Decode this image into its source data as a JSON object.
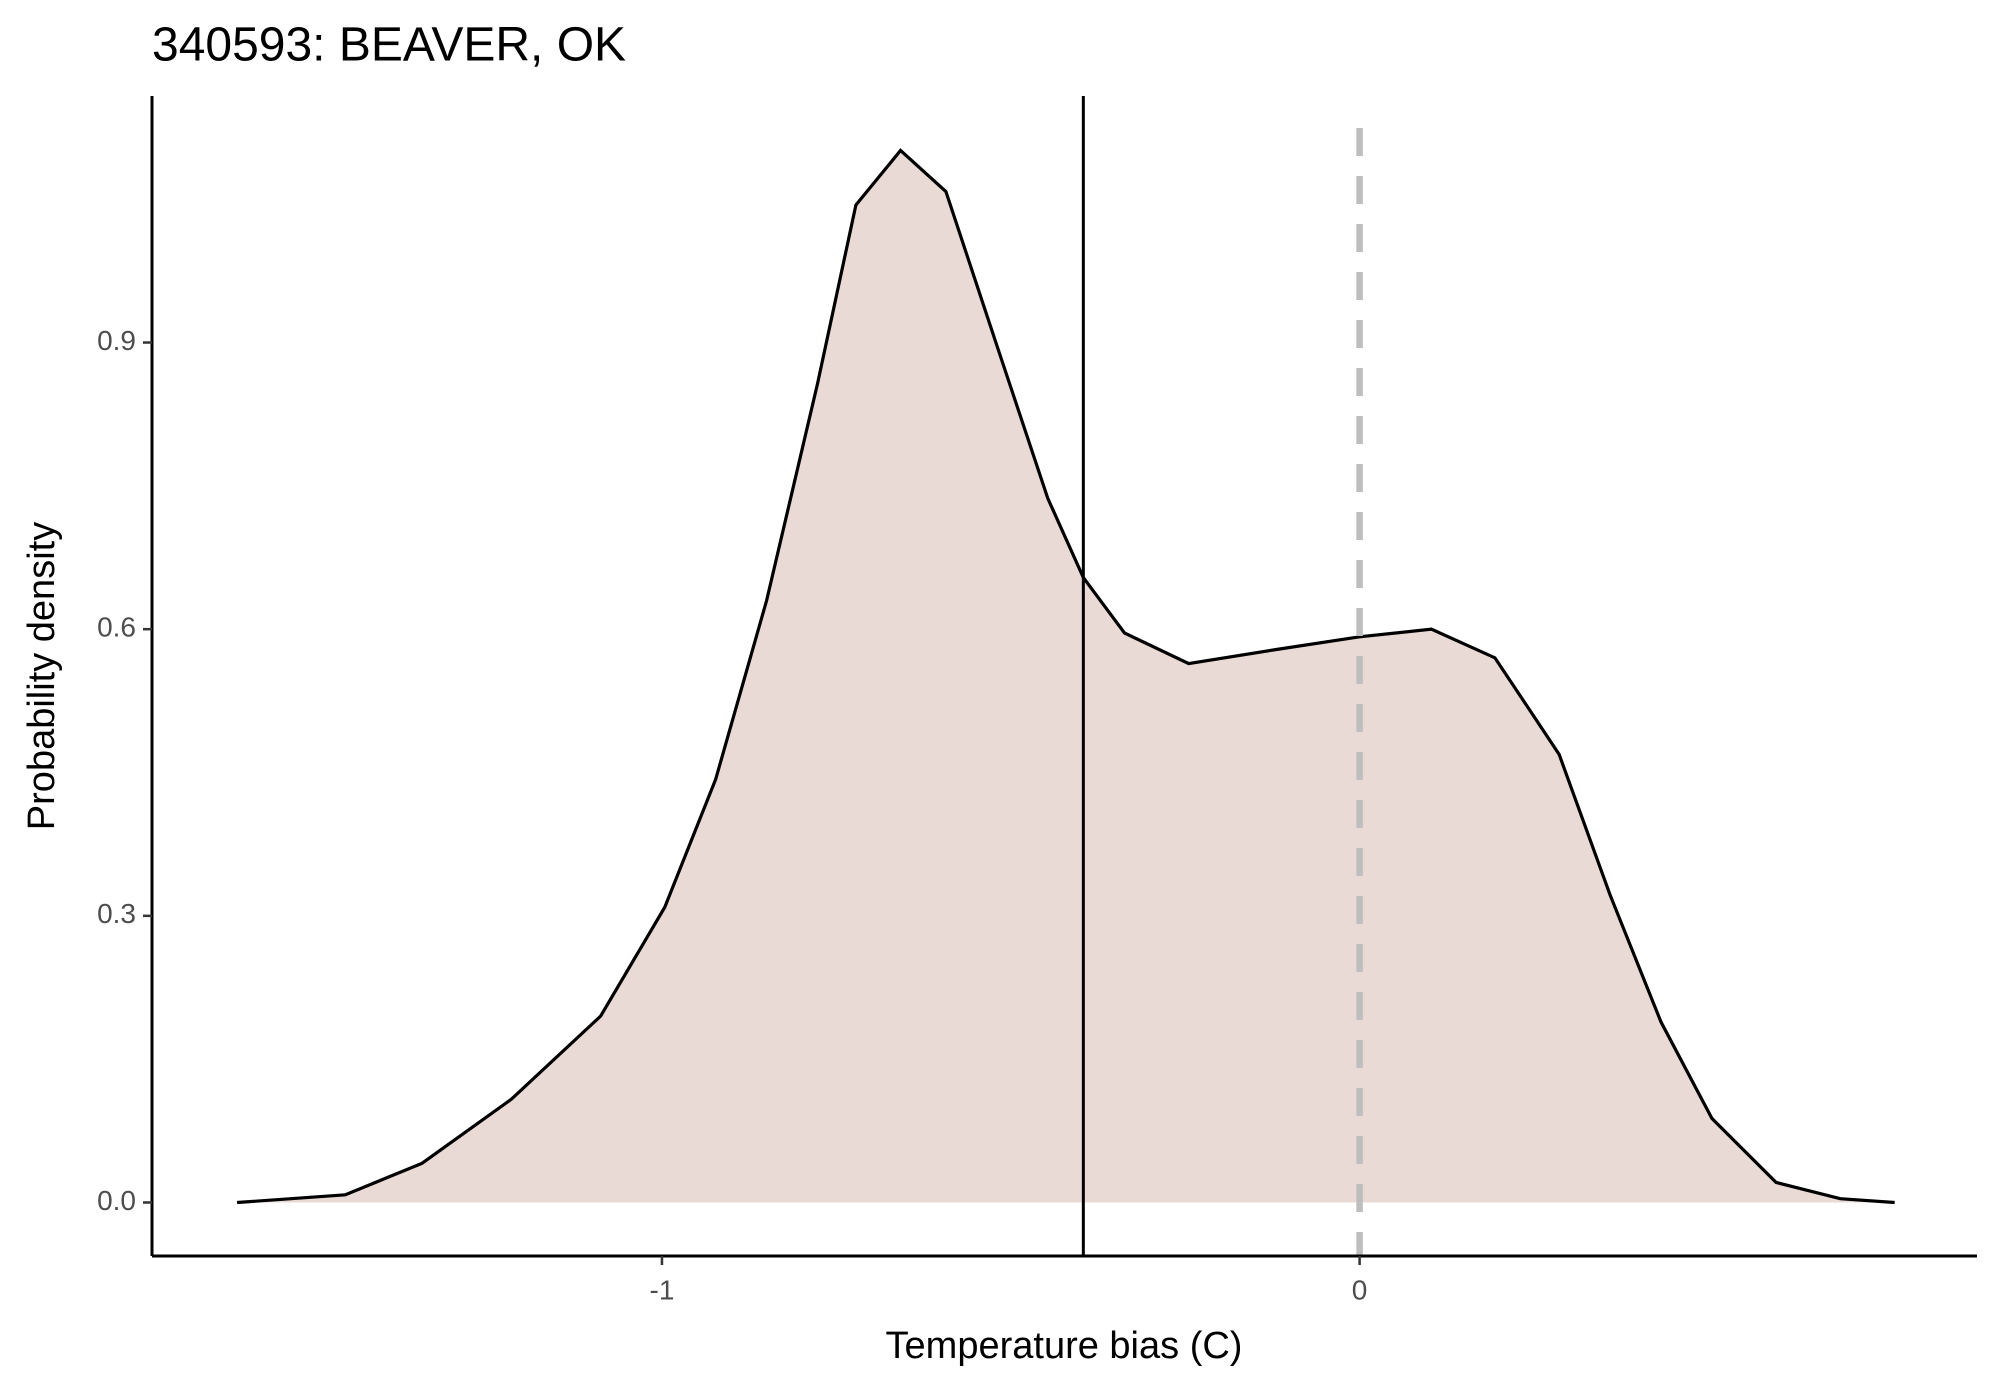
{
  "chart_data": {
    "type": "density",
    "title": "340593: BEAVER, OK",
    "xlabel": "Temperature bias (C)",
    "ylabel": "Probability density",
    "x": [
      -1.609,
      -1.454,
      -1.344,
      -1.216,
      -1.088,
      -0.996,
      -0.923,
      -0.85,
      -0.777,
      -0.722,
      -0.658,
      -0.593,
      -0.52,
      -0.447,
      -0.396,
      -0.337,
      -0.245,
      -0.117,
      0,
      0.103,
      0.194,
      0.286,
      0.359,
      0.432,
      0.505,
      0.597,
      0.689,
      0.767
    ],
    "values": [
      0.0,
      0.008,
      0.041,
      0.108,
      0.195,
      0.309,
      0.443,
      0.63,
      0.857,
      1.044,
      1.101,
      1.058,
      0.897,
      0.737,
      0.654,
      0.596,
      0.564,
      0.579,
      0.592,
      0.6,
      0.57,
      0.469,
      0.322,
      0.189,
      0.088,
      0.021,
      0.004,
      0.0
    ],
    "fill_color": "#eadad6",
    "line_color": "#000000",
    "reference_lines": [
      {
        "value": -0.396,
        "color": "#000000",
        "style": "solid"
      },
      {
        "value": 0,
        "color": "#bebebe",
        "style": "dashed"
      }
    ],
    "xlim": [
      -1.731,
      0.885
    ],
    "ylim": [
      -0.056,
      1.158
    ],
    "xticks": [
      -1,
      0
    ],
    "yticks": [
      {
        "value": 0,
        "label": "0.0"
      },
      0.3,
      0.6,
      0.9
    ]
  }
}
